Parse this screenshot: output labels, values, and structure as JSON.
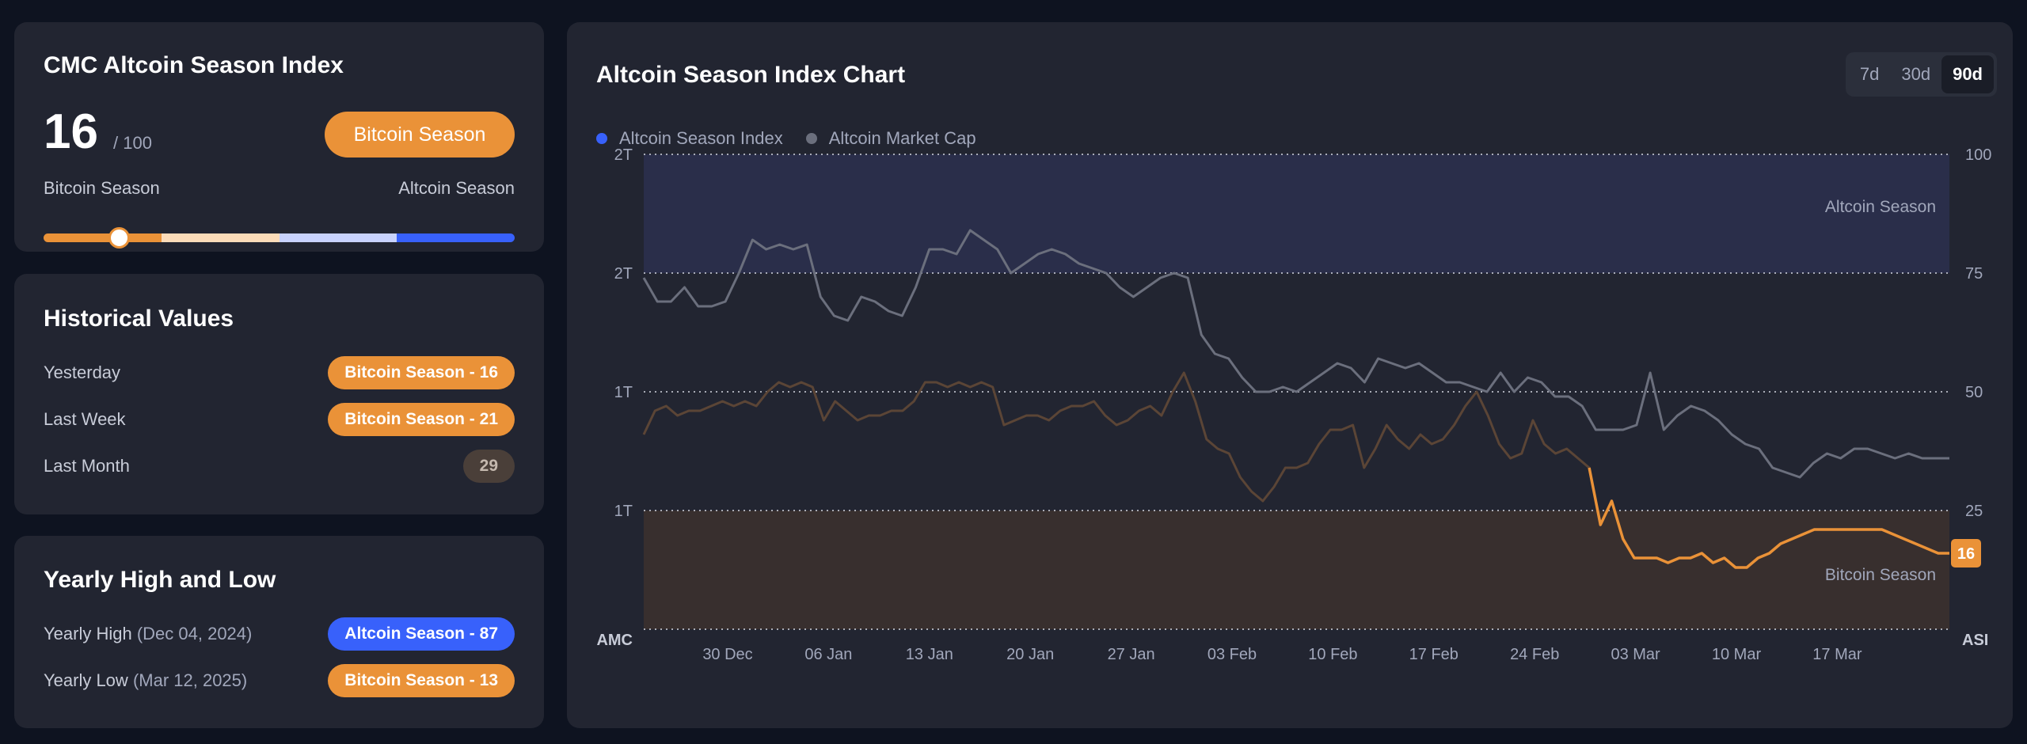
{
  "index_card": {
    "title": "CMC Altcoin Season Index",
    "value": "16",
    "max": "/ 100",
    "status": "Bitcoin Season",
    "left_label": "Bitcoin Season",
    "right_label": "Altcoin Season",
    "value_fraction": 0.16,
    "meter_colors": [
      "#ea9238",
      "#fcdcb9",
      "#c8d2fd",
      "#3861fb"
    ]
  },
  "historical": {
    "title": "Historical Values",
    "rows": [
      {
        "label": "Yesterday",
        "value": "Bitcoin Season - 16",
        "color": "orange"
      },
      {
        "label": "Last Week",
        "value": "Bitcoin Season - 21",
        "color": "orange"
      },
      {
        "label": "Last Month",
        "value": "29",
        "color": "neutral"
      }
    ]
  },
  "yearly": {
    "title": "Yearly High and Low",
    "high_label": "Yearly High",
    "high_date": "(Dec 04, 2024)",
    "high_value": "Altcoin Season - 87",
    "low_label": "Yearly Low",
    "low_date": "(Mar 12, 2025)",
    "low_value": "Bitcoin Season - 13"
  },
  "chart": {
    "title": "Altcoin Season Index Chart",
    "ranges": [
      "7d",
      "30d",
      "90d"
    ],
    "active_range": "90d",
    "legend": [
      {
        "name": "Altcoin Season Index",
        "color": "#3861fb"
      },
      {
        "name": "Altcoin Market Cap",
        "color": "#6b6f7d"
      }
    ],
    "left_axis_label": "AMC",
    "right_axis_label": "ASI",
    "zone_top_label": "Altcoin Season",
    "zone_bottom_label": "Bitcoin Season",
    "current_badge": "16"
  },
  "chart_data": {
    "type": "line",
    "title": "Altcoin Season Index Chart",
    "x_ticks": [
      "30 Dec",
      "06 Jan",
      "13 Jan",
      "20 Jan",
      "27 Jan",
      "03 Feb",
      "10 Feb",
      "17 Feb",
      "24 Feb",
      "03 Mar",
      "10 Mar",
      "17 Mar"
    ],
    "left_ticks": [
      "2T",
      "2T",
      "1T",
      "1T"
    ],
    "right_ticks": [
      "100",
      "75",
      "50",
      "25"
    ],
    "ylim_right": [
      0,
      100
    ],
    "grid": true,
    "legend_position": "top-left",
    "colors": {
      "bitcoin_season": "#ea9238",
      "altcoin_season": "#3861fb",
      "market_cap": "#6b6f7d"
    },
    "series": [
      {
        "name": "Altcoin Season Index",
        "axis": "right",
        "values": [
          41,
          46,
          47,
          45,
          46,
          46,
          47,
          48,
          47,
          48,
          47,
          50,
          52,
          51,
          52,
          51,
          44,
          48,
          46,
          44,
          45,
          45,
          46,
          46,
          48,
          52,
          52,
          51,
          52,
          51,
          52,
          51,
          43,
          44,
          45,
          45,
          44,
          46,
          47,
          47,
          48,
          45,
          43,
          44,
          46,
          47,
          45,
          50,
          54,
          48,
          40,
          38,
          37,
          32,
          29,
          27,
          30,
          34,
          34,
          35,
          39,
          42,
          42,
          43,
          34,
          38,
          43,
          40,
          38,
          41,
          39,
          40,
          43,
          47,
          50,
          45,
          39,
          36,
          37,
          44,
          39,
          37,
          38,
          36,
          34,
          22,
          27,
          19,
          15,
          15,
          15,
          14,
          15,
          15,
          16,
          14,
          15,
          13,
          13,
          15,
          16,
          18,
          19,
          20,
          21,
          21,
          21,
          21,
          21,
          21,
          21,
          20,
          19,
          18,
          17,
          16,
          16
        ]
      },
      {
        "name": "Altcoin Market Cap",
        "axis": "left",
        "values": [
          74,
          69,
          69,
          72,
          68,
          68,
          69,
          75,
          82,
          80,
          81,
          80,
          81,
          70,
          66,
          65,
          70,
          69,
          67,
          66,
          72,
          80,
          80,
          79,
          84,
          82,
          80,
          75,
          77,
          79,
          80,
          79,
          77,
          76,
          75,
          72,
          70,
          72,
          74,
          75,
          74,
          62,
          58,
          57,
          53,
          50,
          50,
          51,
          50,
          52,
          54,
          56,
          55,
          52,
          57,
          56,
          55,
          56,
          54,
          52,
          52,
          51,
          50,
          54,
          50,
          53,
          52,
          49,
          49,
          47,
          42,
          42,
          42,
          43,
          54,
          42,
          45,
          47,
          46,
          44,
          41,
          39,
          38,
          34,
          33,
          32,
          35,
          37,
          36,
          38,
          38,
          37,
          36,
          37,
          36,
          36,
          36
        ]
      }
    ]
  }
}
